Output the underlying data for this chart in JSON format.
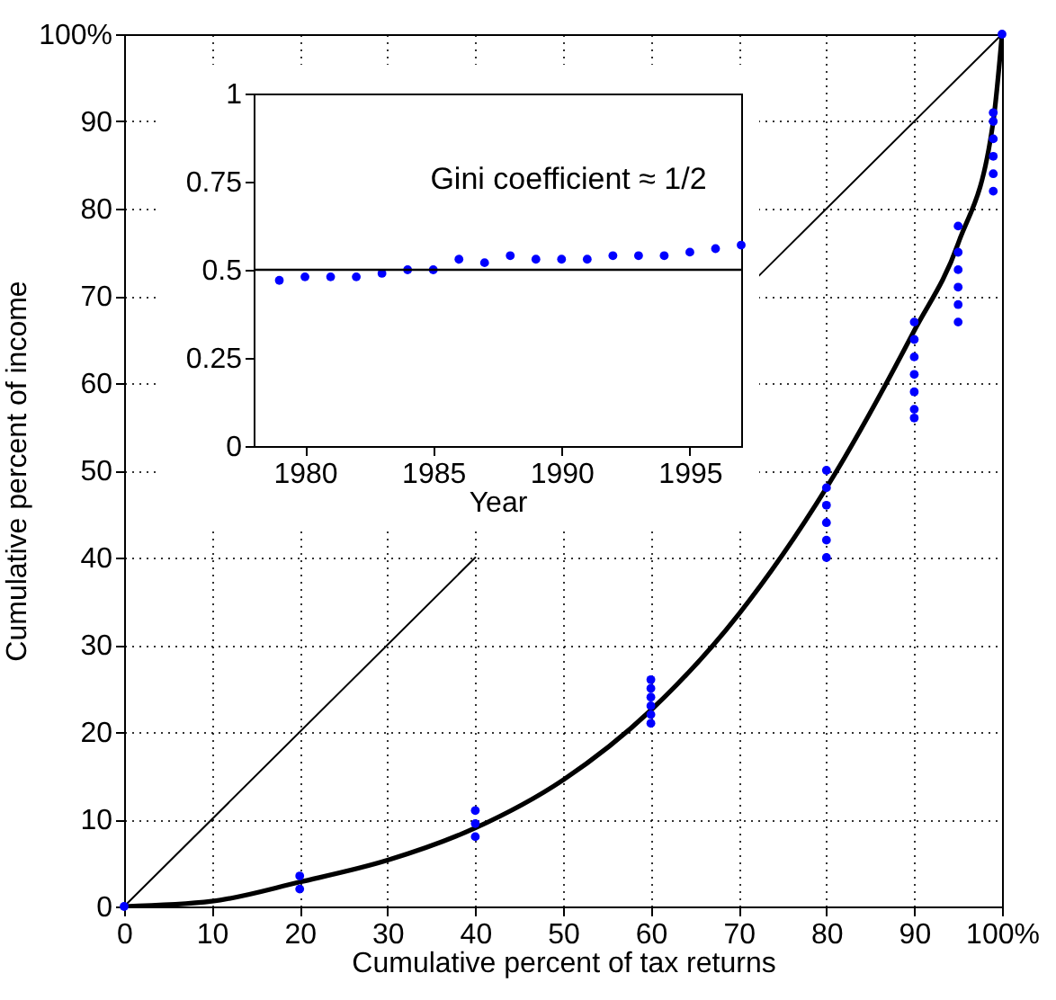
{
  "chart_data": [
    {
      "type": "line",
      "xlabel": "Cumulative percent of tax returns",
      "ylabel": "Cumulative percent of income",
      "xlim": [
        0,
        100
      ],
      "ylim": [
        0,
        100
      ],
      "xticks": [
        0,
        10,
        20,
        30,
        40,
        50,
        60,
        70,
        80,
        90,
        {
          "value": 100,
          "label": "100%"
        }
      ],
      "yticks": [
        0,
        10,
        20,
        30,
        40,
        50,
        60,
        70,
        80,
        90,
        {
          "value": 100,
          "label": "100%"
        }
      ],
      "grid": true,
      "series": [
        {
          "color": "#000000",
          "x": [
            0,
            10,
            20,
            30,
            40,
            50,
            60,
            70,
            80,
            90,
            95,
            99,
            100
          ],
          "values": [
            0,
            0.6,
            2.8,
            5.3,
            9,
            14.5,
            22.5,
            33.5,
            48,
            66,
            76,
            90,
            100
          ]
        },
        {
          "color": "#000000",
          "x": [
            0,
            40,
            56,
            72,
            100
          ],
          "values": [
            0,
            40,
            null,
            72,
            100
          ]
        },
        {
          "type": "scatter",
          "color": "#0000ff",
          "marker": "circle",
          "x": [
            0,
            20,
            20,
            40,
            40,
            40,
            60,
            60,
            60,
            60,
            60,
            60,
            80,
            80,
            80,
            80,
            80,
            80,
            90,
            90,
            90,
            90,
            90,
            90,
            90,
            95,
            95,
            95,
            95,
            95,
            95,
            99,
            99,
            99,
            99,
            99,
            99,
            100
          ],
          "values": [
            0,
            2,
            3.5,
            8,
            9.5,
            11,
            21,
            22,
            23,
            24,
            25,
            26,
            40,
            42,
            44,
            46,
            48,
            50,
            56,
            57,
            59,
            61,
            63,
            65,
            67,
            67,
            69,
            71,
            73,
            75,
            78,
            82,
            84,
            86,
            88,
            90,
            91,
            100
          ]
        }
      ]
    },
    {
      "type": "scatter",
      "xlabel": "Year",
      "annotations": [
        "Gini coefficient ≈ 1/2"
      ],
      "xlim": [
        1978,
        1997
      ],
      "ylim": [
        0,
        1
      ],
      "xticks": [
        1980,
        1985,
        1990,
        1995
      ],
      "yticks": [
        0,
        0.25,
        0.5,
        0.75,
        1
      ],
      "grid": false,
      "marker": "circle",
      "ref_lines": [
        {
          "axis": "y",
          "value": 0.5,
          "color": "#000000"
        }
      ],
      "series": [
        {
          "color": "#0000ff",
          "x": [
            1979,
            1980,
            1981,
            1982,
            1983,
            1984,
            1985,
            1986,
            1987,
            1988,
            1989,
            1990,
            1991,
            1992,
            1993,
            1994,
            1995,
            1996,
            1997
          ],
          "values": [
            0.47,
            0.48,
            0.48,
            0.48,
            0.49,
            0.5,
            0.5,
            0.53,
            0.52,
            0.54,
            0.53,
            0.53,
            0.53,
            0.54,
            0.54,
            0.54,
            0.55,
            0.56,
            0.57
          ]
        }
      ]
    }
  ]
}
